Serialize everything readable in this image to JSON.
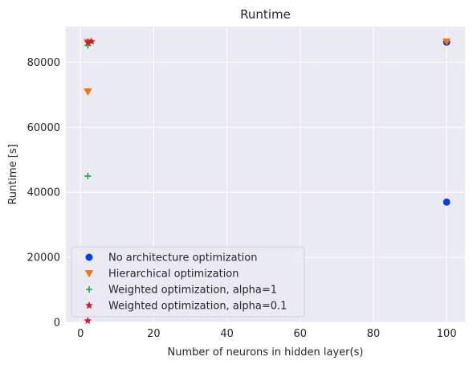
{
  "chart_data": {
    "type": "scatter",
    "title": "Runtime",
    "xlabel": "Number of neurons in hidden layer(s)",
    "ylabel": "Runtime [s]",
    "xlim": [
      -4,
      105
    ],
    "ylim": [
      0,
      91000
    ],
    "xticks": [
      0,
      20,
      40,
      60,
      80,
      100
    ],
    "yticks": [
      0,
      20000,
      40000,
      60000,
      80000
    ],
    "grid": true,
    "legend_position": "lower-left",
    "series": [
      {
        "name": "No architecture optimization",
        "marker": "circle",
        "color": "#0a3fe8",
        "points": [
          {
            "x": 100,
            "y": 37000
          },
          {
            "x": 100,
            "y": 86200
          }
        ]
      },
      {
        "name": "Hierarchical optimization",
        "marker": "triangle-down",
        "color": "#f5770a",
        "points": [
          {
            "x": 2,
            "y": 71000
          },
          {
            "x": 2,
            "y": 86200
          },
          {
            "x": 100,
            "y": 86400
          }
        ]
      },
      {
        "name": "Weighted optimization, alpha=1",
        "marker": "plus",
        "color": "#1aaa3a",
        "points": [
          {
            "x": 2,
            "y": 45000
          },
          {
            "x": 2,
            "y": 85200
          }
        ]
      },
      {
        "name": "Weighted optimization, alpha=0.1",
        "marker": "star",
        "color": "#d6182a",
        "points": [
          {
            "x": 2,
            "y": 500
          },
          {
            "x": 2,
            "y": 86200
          },
          {
            "x": 3,
            "y": 86400
          }
        ]
      }
    ]
  }
}
